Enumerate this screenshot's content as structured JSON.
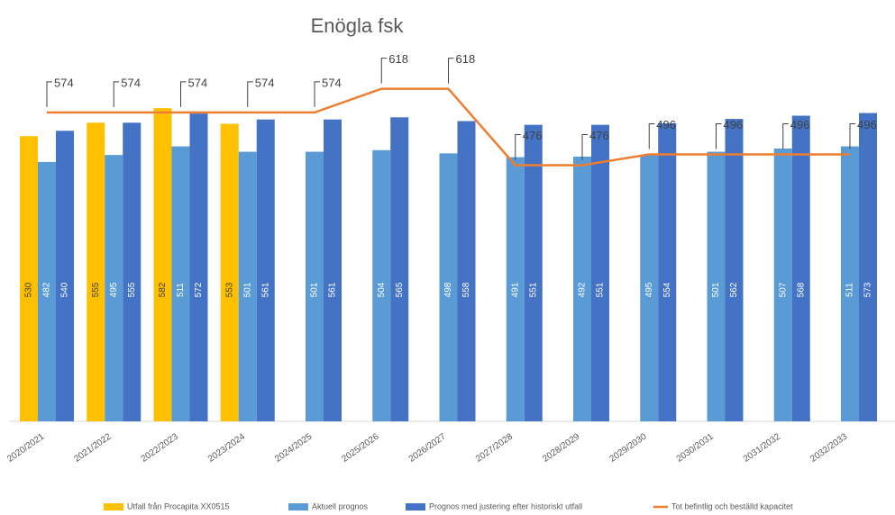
{
  "chart_data": {
    "type": "bar",
    "title": "Enögla fsk",
    "categories": [
      "2020/2021",
      "2021/2022",
      "2022/2023",
      "2023/2024",
      "2024/2025",
      "2025/2026",
      "2026/2027",
      "2027/2028",
      "2028/2029",
      "2029/2030",
      "2030/2031",
      "2031/2032",
      "2032/2033"
    ],
    "series": [
      {
        "name": "Utfall från Procapita XX0515",
        "type": "bar",
        "color": "#ffc000",
        "values": [
          530,
          555,
          582,
          553,
          null,
          null,
          null,
          null,
          null,
          null,
          null,
          null,
          null
        ]
      },
      {
        "name": "Aktuell prognos",
        "type": "bar",
        "color": "#5b9bd5",
        "values": [
          482,
          495,
          511,
          501,
          501,
          504,
          498,
          491,
          492,
          495,
          501,
          507,
          511
        ]
      },
      {
        "name": "Prognos med justering efter historiskt utfall",
        "type": "bar",
        "color": "#4472c4",
        "values": [
          540,
          555,
          572,
          561,
          561,
          565,
          558,
          551,
          551,
          554,
          562,
          568,
          573
        ]
      },
      {
        "name": "Tot befintlig och beställd kapacitet",
        "type": "line",
        "color": "#ed7d31",
        "values": [
          574,
          574,
          574,
          574,
          574,
          618,
          618,
          476,
          476,
          496,
          496,
          496,
          496
        ]
      }
    ],
    "ylim": [
      0,
      783
    ],
    "legend": "bottom"
  }
}
